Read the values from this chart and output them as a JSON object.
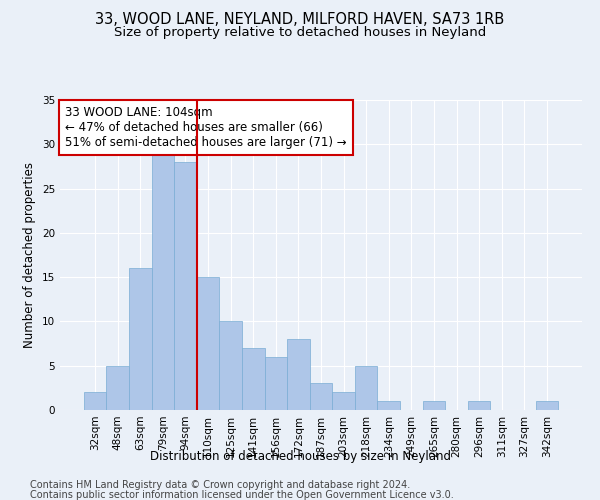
{
  "title_line1": "33, WOOD LANE, NEYLAND, MILFORD HAVEN, SA73 1RB",
  "title_line2": "Size of property relative to detached houses in Neyland",
  "xlabel": "Distribution of detached houses by size in Neyland",
  "ylabel": "Number of detached properties",
  "categories": [
    "32sqm",
    "48sqm",
    "63sqm",
    "79sqm",
    "94sqm",
    "110sqm",
    "125sqm",
    "141sqm",
    "156sqm",
    "172sqm",
    "187sqm",
    "203sqm",
    "218sqm",
    "234sqm",
    "249sqm",
    "265sqm",
    "280sqm",
    "296sqm",
    "311sqm",
    "327sqm",
    "342sqm"
  ],
  "values": [
    2,
    5,
    16,
    29,
    28,
    15,
    10,
    7,
    6,
    8,
    3,
    2,
    5,
    1,
    0,
    1,
    0,
    1,
    0,
    0,
    1
  ],
  "bar_color": "#aec6e8",
  "bar_edgecolor": "#7aadd4",
  "vline_x": 4.5,
  "vline_color": "#cc0000",
  "annotation_line1": "33 WOOD LANE: 104sqm",
  "annotation_line2": "← 47% of detached houses are smaller (66)",
  "annotation_line3": "51% of semi-detached houses are larger (71) →",
  "annotation_box_color": "#ffffff",
  "annotation_box_edgecolor": "#cc0000",
  "ylim": [
    0,
    35
  ],
  "yticks": [
    0,
    5,
    10,
    15,
    20,
    25,
    30,
    35
  ],
  "background_color": "#eaf0f8",
  "grid_color": "#ffffff",
  "footer_line1": "Contains HM Land Registry data © Crown copyright and database right 2024.",
  "footer_line2": "Contains public sector information licensed under the Open Government Licence v3.0.",
  "title_fontsize": 10.5,
  "subtitle_fontsize": 9.5,
  "axis_label_fontsize": 8.5,
  "tick_fontsize": 7.5,
  "annotation_fontsize": 8.5,
  "footer_fontsize": 7.0
}
